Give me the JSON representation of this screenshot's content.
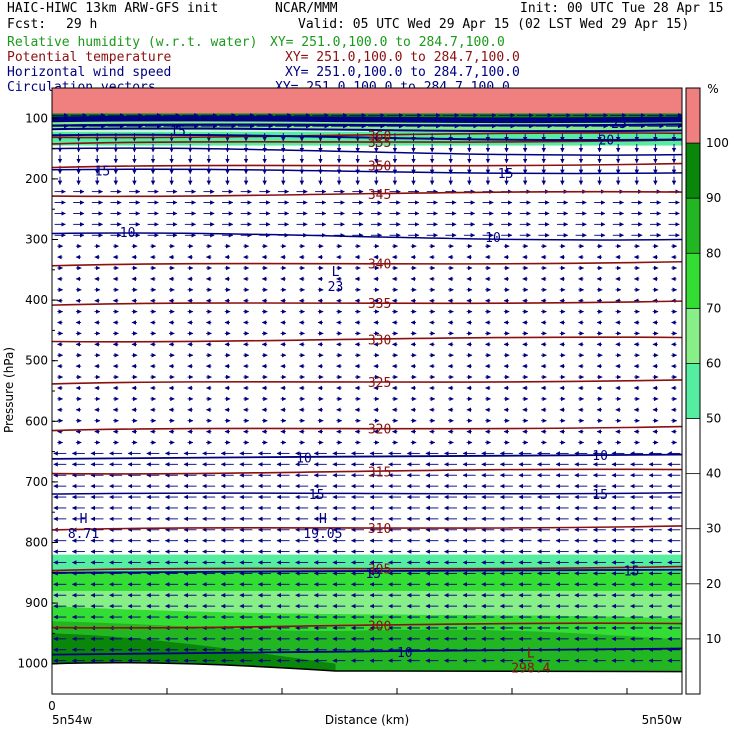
{
  "header": {
    "model": "HAIC-HIWC 13km ARW-GFS init",
    "org": "NCAR/MMM",
    "init": "Init: 00 UTC Tue 28 Apr 15",
    "fcst_label": "Fcst:",
    "fcst_value": "29 h",
    "valid": "Valid: 05 UTC Wed 29 Apr 15 (02 LST Wed 29 Apr 15)",
    "fields": [
      {
        "name": "Relative humidity (w.r.t. water)",
        "xy": "XY= 251.0,100.0 to 284.7,100.0",
        "color": "#1a9a1a"
      },
      {
        "name": "Potential temperature",
        "xy": "XY= 251.0,100.0 to 284.7,100.0",
        "color": "#8b1010"
      },
      {
        "name": "Horizontal wind speed",
        "xy": "XY= 251.0,100.0 to 284.7,100.0",
        "color": "#000080"
      },
      {
        "name": "Circulation vectors",
        "xy": "XY= 251.0,100.0 to 284.7,100.0",
        "color": "#000080"
      }
    ]
  },
  "chart_data": {
    "type": "heatmap",
    "ylabel": "Pressure (hPa)",
    "xlabel": "Distance (km)",
    "x_tick_labels": [
      "0"
    ],
    "x_endpoints": [
      "5n54w",
      "5n50w"
    ],
    "y_ticks": [
      100,
      200,
      300,
      400,
      500,
      600,
      700,
      800,
      900,
      1000
    ],
    "ylim": [
      1050,
      50
    ],
    "colorbar": {
      "unit": "%",
      "ticks": [
        10,
        20,
        30,
        40,
        50,
        60,
        70,
        80,
        90,
        100
      ],
      "levels": [
        {
          "from": 50,
          "to": 60,
          "color": "#55eda0"
        },
        {
          "from": 60,
          "to": 70,
          "color": "#88ee88"
        },
        {
          "from": 70,
          "to": 80,
          "color": "#33dd33"
        },
        {
          "from": 80,
          "to": 90,
          "color": "#22b722"
        },
        {
          "from": 90,
          "to": 100,
          "color": "#0a860a"
        },
        {
          "from": 100,
          "to": 110,
          "color": "#f08080"
        }
      ]
    },
    "theta_contours": [
      {
        "label": "360",
        "p": 128
      },
      {
        "label": "355",
        "p": 139
      },
      {
        "label": "350",
        "p": 178
      },
      {
        "label": "345",
        "p": 225
      },
      {
        "label": "340",
        "p": 340
      },
      {
        "label": "335",
        "p": 405
      },
      {
        "label": "330",
        "p": 465
      },
      {
        "label": "325",
        "p": 535
      },
      {
        "label": "320",
        "p": 612
      },
      {
        "label": "315",
        "p": 683
      },
      {
        "label": "310",
        "p": 776
      },
      {
        "label": "305",
        "p": 843
      },
      {
        "label": "300",
        "p": 937
      }
    ],
    "wind_labels": [
      {
        "label": "15",
        "p": 120,
        "x": 0.2
      },
      {
        "label": "15",
        "p": 186,
        "x": 0.08
      },
      {
        "label": "15",
        "p": 190,
        "x": 0.72
      },
      {
        "label": "10",
        "p": 288,
        "x": 0.12
      },
      {
        "label": "10",
        "p": 296,
        "x": 0.7
      },
      {
        "label": "20",
        "p": 135,
        "x": 0.88
      },
      {
        "label": "25",
        "p": 108,
        "x": 0.9
      },
      {
        "label": "10",
        "p": 660,
        "x": 0.4
      },
      {
        "label": "10",
        "p": 656,
        "x": 0.87
      },
      {
        "label": "15",
        "p": 720,
        "x": 0.42
      },
      {
        "label": "15",
        "p": 720,
        "x": 0.87
      },
      {
        "label": "15",
        "p": 850,
        "x": 0.51
      },
      {
        "label": "15",
        "p": 846,
        "x": 0.92
      },
      {
        "label": "10",
        "p": 981,
        "x": 0.56
      }
    ],
    "extrema": [
      {
        "kind": "L",
        "value": "23",
        "p": 370,
        "x": 0.45
      },
      {
        "kind": "H",
        "value": "8.71",
        "p": 778,
        "x": 0.05
      },
      {
        "kind": "H",
        "value": "19.05",
        "p": 778,
        "x": 0.43
      },
      {
        "kind": "L",
        "value": "298.4",
        "p": 1000,
        "x": 0.76
      }
    ]
  }
}
